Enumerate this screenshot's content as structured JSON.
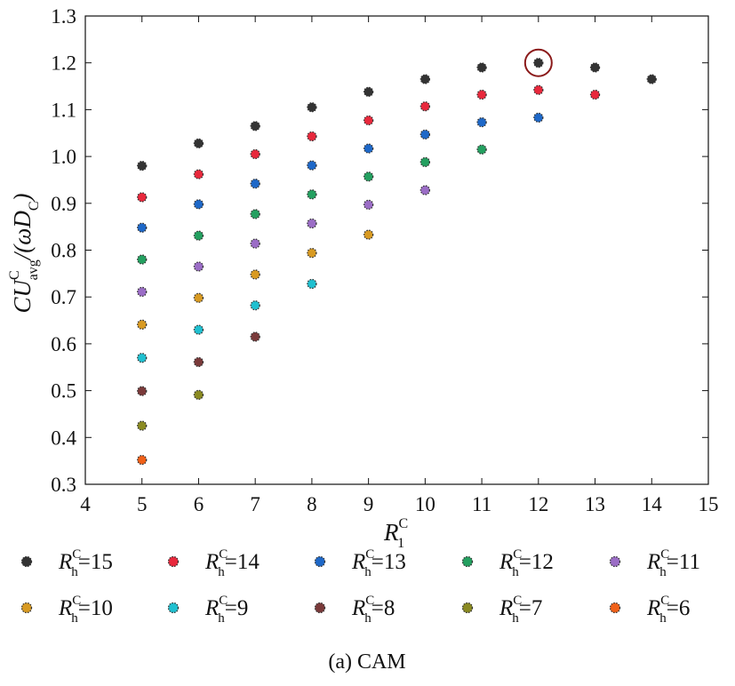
{
  "chart_data": {
    "type": "scatter",
    "caption": "(a) CAM",
    "xlabel": {
      "main": "R",
      "sub": "1",
      "sup": "C"
    },
    "ylabel": {
      "prefix": "CU",
      "sup": "C",
      "sub": "avg",
      "mid": "/(ωD",
      "sub2": "C",
      "suffix": ")"
    },
    "xlim": [
      4,
      15
    ],
    "ylim": [
      0.3,
      1.3
    ],
    "x_ticks": [
      "4",
      "5",
      "6",
      "7",
      "8",
      "9",
      "10",
      "11",
      "12",
      "13",
      "14",
      "15"
    ],
    "y_ticks": [
      "0.3",
      "0.4",
      "0.5",
      "0.6",
      "0.7",
      "0.8",
      "0.9",
      "1.0",
      "1.1",
      "1.2",
      "1.3"
    ],
    "grid": false,
    "legend_placement": "bottom",
    "highlight": {
      "x": 12,
      "y": 1.2,
      "color": "#8b1a1a"
    },
    "series": [
      {
        "name": "15",
        "label_prefix": "R",
        "label_sub": "h",
        "label_sup": "C",
        "color": "#333333",
        "x": [
          5,
          6,
          7,
          8,
          9,
          10,
          11,
          12,
          13,
          14
        ],
        "y": [
          0.98,
          1.028,
          1.065,
          1.105,
          1.138,
          1.165,
          1.19,
          1.2,
          1.19,
          1.165
        ]
      },
      {
        "name": "14",
        "label_prefix": "R",
        "label_sub": "h",
        "label_sup": "C",
        "color": "#e8283c",
        "x": [
          5,
          6,
          7,
          8,
          9,
          10,
          11,
          12,
          13
        ],
        "y": [
          0.913,
          0.962,
          1.005,
          1.043,
          1.077,
          1.107,
          1.132,
          1.142,
          1.132
        ]
      },
      {
        "name": "13",
        "label_prefix": "R",
        "label_sub": "h",
        "label_sup": "C",
        "color": "#1e68c8",
        "x": [
          5,
          6,
          7,
          8,
          9,
          10,
          11,
          12
        ],
        "y": [
          0.848,
          0.898,
          0.942,
          0.981,
          1.017,
          1.047,
          1.073,
          1.083
        ]
      },
      {
        "name": "12",
        "label_prefix": "R",
        "label_sub": "h",
        "label_sup": "C",
        "color": "#24a060",
        "x": [
          5,
          6,
          7,
          8,
          9,
          10,
          11
        ],
        "y": [
          0.78,
          0.831,
          0.877,
          0.919,
          0.957,
          0.988,
          1.015
        ]
      },
      {
        "name": "11",
        "label_prefix": "R",
        "label_sub": "h",
        "label_sup": "C",
        "color": "#9b6dc6",
        "x": [
          5,
          6,
          7,
          8,
          9,
          10
        ],
        "y": [
          0.711,
          0.765,
          0.814,
          0.857,
          0.897,
          0.928
        ]
      },
      {
        "name": "10",
        "label_prefix": "R",
        "label_sub": "h",
        "label_sup": "C",
        "color": "#d89a22",
        "x": [
          5,
          6,
          7,
          8,
          9
        ],
        "y": [
          0.641,
          0.698,
          0.748,
          0.794,
          0.833
        ]
      },
      {
        "name": "9",
        "label_prefix": "R",
        "label_sub": "h",
        "label_sup": "C",
        "color": "#20c0d0",
        "x": [
          5,
          6,
          7,
          8
        ],
        "y": [
          0.57,
          0.63,
          0.682,
          0.728
        ]
      },
      {
        "name": "8",
        "label_prefix": "R",
        "label_sub": "h",
        "label_sup": "C",
        "color": "#7a3a3a",
        "x": [
          5,
          6,
          7
        ],
        "y": [
          0.499,
          0.561,
          0.615
        ]
      },
      {
        "name": "7",
        "label_prefix": "R",
        "label_sub": "h",
        "label_sup": "C",
        "color": "#8a8a22",
        "x": [
          5,
          6
        ],
        "y": [
          0.425,
          0.491
        ]
      },
      {
        "name": "6",
        "label_prefix": "R",
        "label_sub": "h",
        "label_sup": "C",
        "color": "#f06018",
        "x": [
          5
        ],
        "y": [
          0.352
        ]
      }
    ]
  }
}
